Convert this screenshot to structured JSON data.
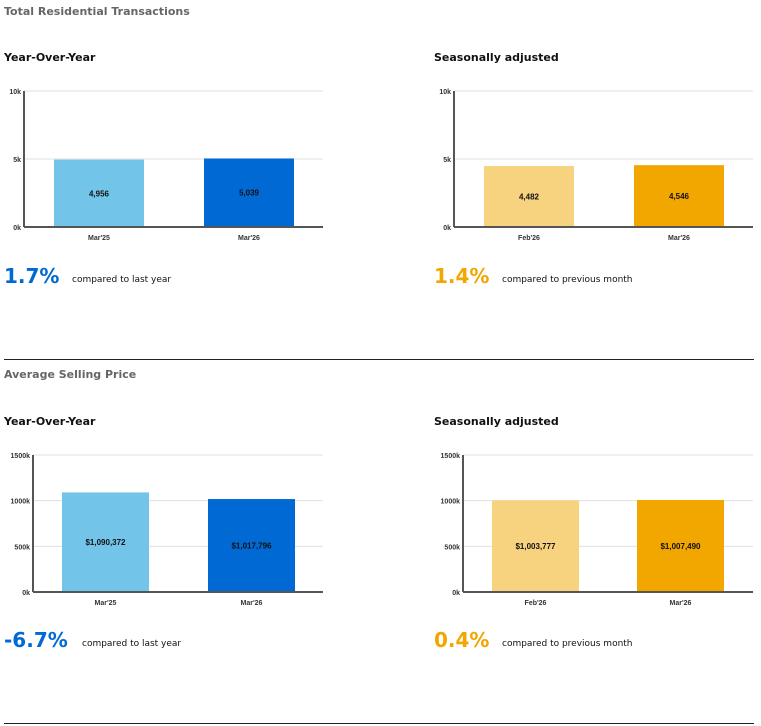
{
  "sections": [
    {
      "title": "Total Residential Transactions",
      "panels": [
        {
          "subtitle": "Year-Over-Year",
          "change": "1.7%",
          "compare": "compared to last year"
        },
        {
          "subtitle": "Seasonally adjusted",
          "change": "1.4%",
          "compare": "compared to previous month"
        }
      ]
    },
    {
      "title": "Average Selling Price",
      "panels": [
        {
          "subtitle": "Year-Over-Year",
          "change": "-6.7%",
          "compare": "compared to last year"
        },
        {
          "subtitle": "Seasonally adjusted",
          "change": "0.4%",
          "compare": "compared to previous month"
        }
      ]
    }
  ],
  "colors": {
    "blue_light": "#72c4e8",
    "blue": "#0069d3",
    "yellow_light": "#f7d27f",
    "orange": "#f2a600",
    "grid": "#e0e0e0",
    "axis": "#555555"
  },
  "chart_data": [
    {
      "type": "bar",
      "categories": [
        "Mar'25",
        "Mar'26"
      ],
      "values": [
        4956,
        5039
      ],
      "data_labels": [
        "4,956",
        "5,039"
      ],
      "ylim": [
        0,
        10000
      ],
      "yticks": [
        "0k",
        "5k",
        "10k"
      ],
      "colors": [
        "#72c4e8",
        "#0069d3"
      ],
      "grid": true
    },
    {
      "type": "bar",
      "categories": [
        "Feb'26",
        "Mar'26"
      ],
      "values": [
        4482,
        4546
      ],
      "data_labels": [
        "4,482",
        "4,546"
      ],
      "ylim": [
        0,
        10000
      ],
      "yticks": [
        "0k",
        "5k",
        "10k"
      ],
      "colors": [
        "#f7d27f",
        "#f2a600"
      ],
      "grid": true
    },
    {
      "type": "bar",
      "categories": [
        "Mar'25",
        "Mar'26"
      ],
      "values": [
        1090372,
        1017796
      ],
      "data_labels": [
        "$1,090,372",
        "$1,017,796"
      ],
      "ylim": [
        0,
        1500000
      ],
      "yticks": [
        "0k",
        "500k",
        "1000k",
        "1500k"
      ],
      "colors": [
        "#72c4e8",
        "#0069d3"
      ],
      "grid": true
    },
    {
      "type": "bar",
      "categories": [
        "Feb'26",
        "Mar'26"
      ],
      "values": [
        1003777,
        1007490
      ],
      "data_labels": [
        "$1,003,777",
        "$1,007,490"
      ],
      "ylim": [
        0,
        1500000
      ],
      "yticks": [
        "0k",
        "500k",
        "1000k",
        "1500k"
      ],
      "colors": [
        "#f7d27f",
        "#f2a600"
      ],
      "grid": true
    }
  ]
}
